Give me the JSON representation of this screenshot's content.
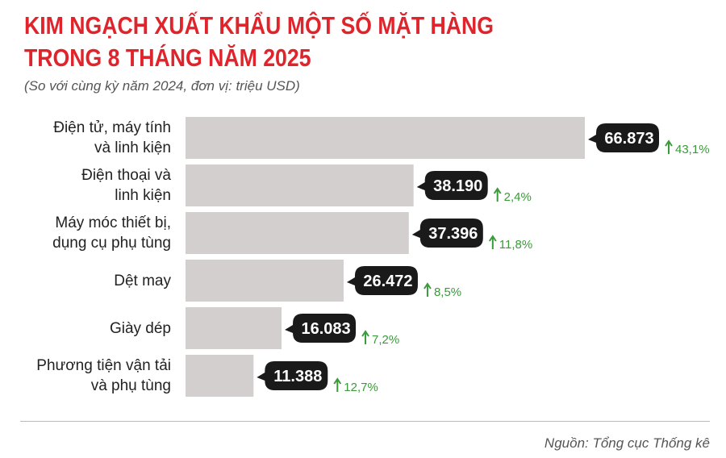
{
  "chart_data": {
    "type": "bar",
    "title": "KIM NGẠCH XUẤT KHẨU MỘT SỐ MẶT HÀNG\nTRONG 8 THÁNG NĂM 2025",
    "subtitle": "(So với cùng kỳ năm 2024, đơn vị: triệu USD)",
    "source": "Nguồn: Tổng cục Thống kê",
    "categories": [
      "Điện tử, máy tính\nvà linh kiện",
      "Điện thoại và\nlinh kiện",
      "Máy móc thiết bị,\ndụng cụ phụ tùng",
      "Dệt may",
      "Giày dép",
      "Phương tiện vận tải\nvà phụ tùng"
    ],
    "values": [
      66873,
      38190,
      37396,
      26472,
      16083,
      11388
    ],
    "value_labels": [
      "66.873",
      "38.190",
      "37.396",
      "26.472",
      "16.083",
      "11.388"
    ],
    "color": "#d3cfcf",
    "growth": {
      "values": [
        43.1,
        2.4,
        11.8,
        8.5,
        7.2,
        12.7
      ],
      "value_labels": [
        "43,1%",
        "2,4%",
        "11,8%",
        "8,5%",
        "7,2%",
        "12,7%"
      ],
      "color": "#3a9a3a"
    }
  }
}
